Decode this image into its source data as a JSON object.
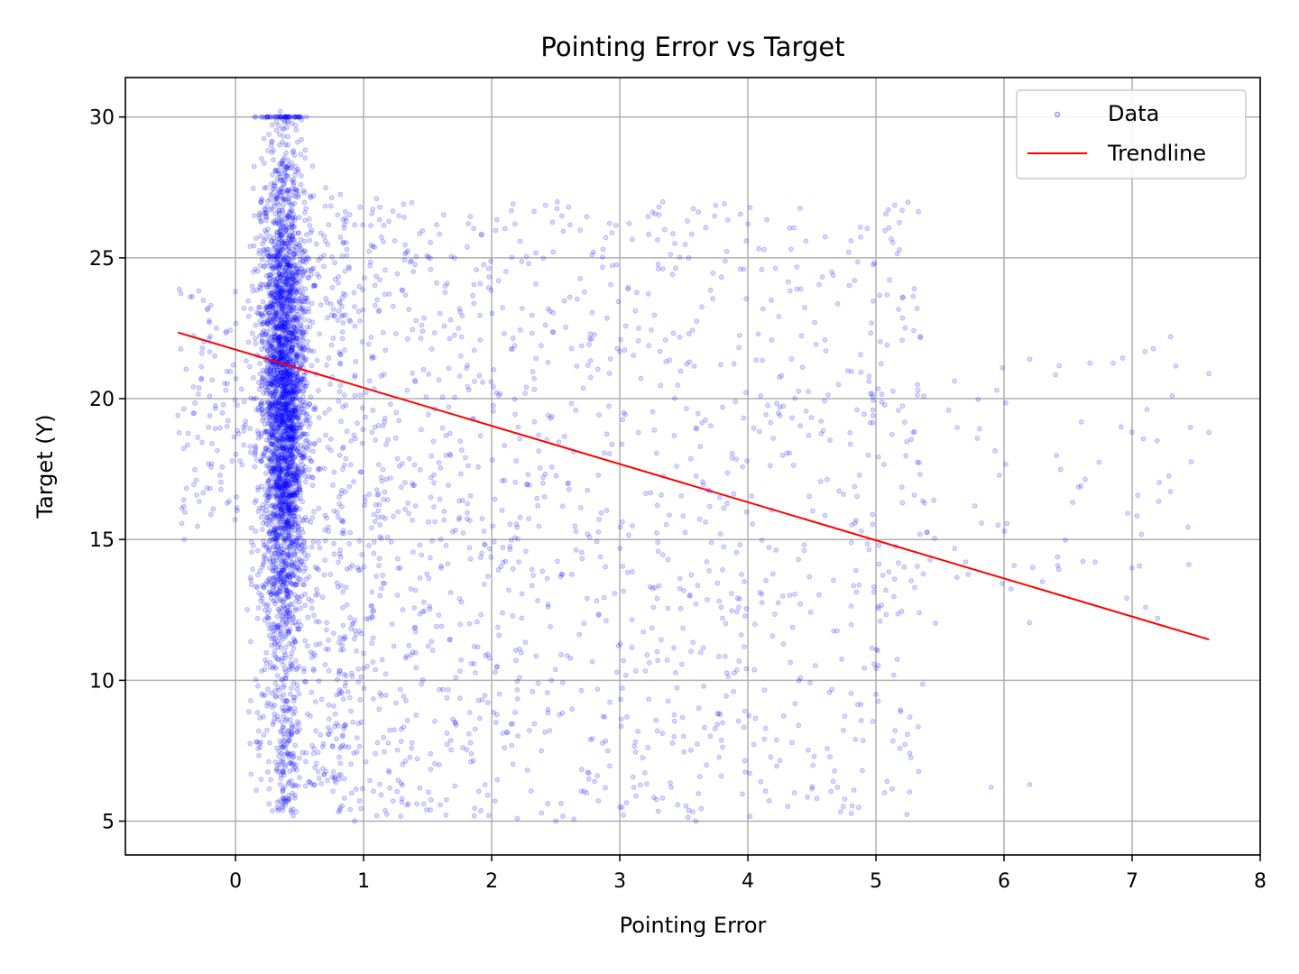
{
  "chart_data": {
    "type": "scatter",
    "title": "Pointing Error vs Target",
    "xlabel": "Pointing Error",
    "ylabel": "Target (Y)",
    "xlim": [
      -0.86,
      8.0
    ],
    "ylim": [
      3.8,
      31.4
    ],
    "xticks": [
      0,
      1,
      2,
      3,
      4,
      5,
      6,
      7,
      8
    ],
    "yticks": [
      5,
      10,
      15,
      20,
      25,
      30
    ],
    "grid": true,
    "legend_position": "top-right",
    "series": [
      {
        "name": "Data",
        "kind": "scatter",
        "color": "#0000ff",
        "opacity": 0.15,
        "note": "dense vertical cluster near x 0.1-0.6 (y 5-30) with sparse spread to x 7.6",
        "sample_points": [
          [
            0.35,
            30.2
          ],
          [
            0.45,
            5.2
          ],
          [
            0.0,
            23.8
          ],
          [
            -0.45,
            19.4
          ],
          [
            -0.4,
            15.0
          ],
          [
            1.1,
            27.1
          ],
          [
            2.6,
            26.8
          ],
          [
            4.0,
            26.2
          ],
          [
            7.3,
            22.2
          ],
          [
            7.6,
            18.8
          ],
          [
            6.2,
            21.4
          ],
          [
            5.3,
            23.9
          ],
          [
            6.6,
            16.9
          ],
          [
            5.9,
            6.2
          ],
          [
            6.2,
            6.3
          ],
          [
            4.7,
            6.2
          ],
          [
            2.5,
            5.0
          ],
          [
            2.2,
            5.1
          ],
          [
            3.0,
            5.5
          ],
          [
            5.0,
            9.5
          ],
          [
            7.2,
            12.2
          ],
          [
            6.3,
            13.5
          ],
          [
            5.7,
            14.2
          ],
          [
            4.1,
            6.4
          ],
          [
            1.3,
            5.8
          ]
        ]
      },
      {
        "name": "Trendline",
        "kind": "line",
        "color": "#ff0000",
        "x": [
          -0.45,
          7.6
        ],
        "y": [
          22.35,
          11.45
        ]
      }
    ]
  },
  "legend": {
    "data_label": "Data",
    "trend_label": "Trendline"
  }
}
